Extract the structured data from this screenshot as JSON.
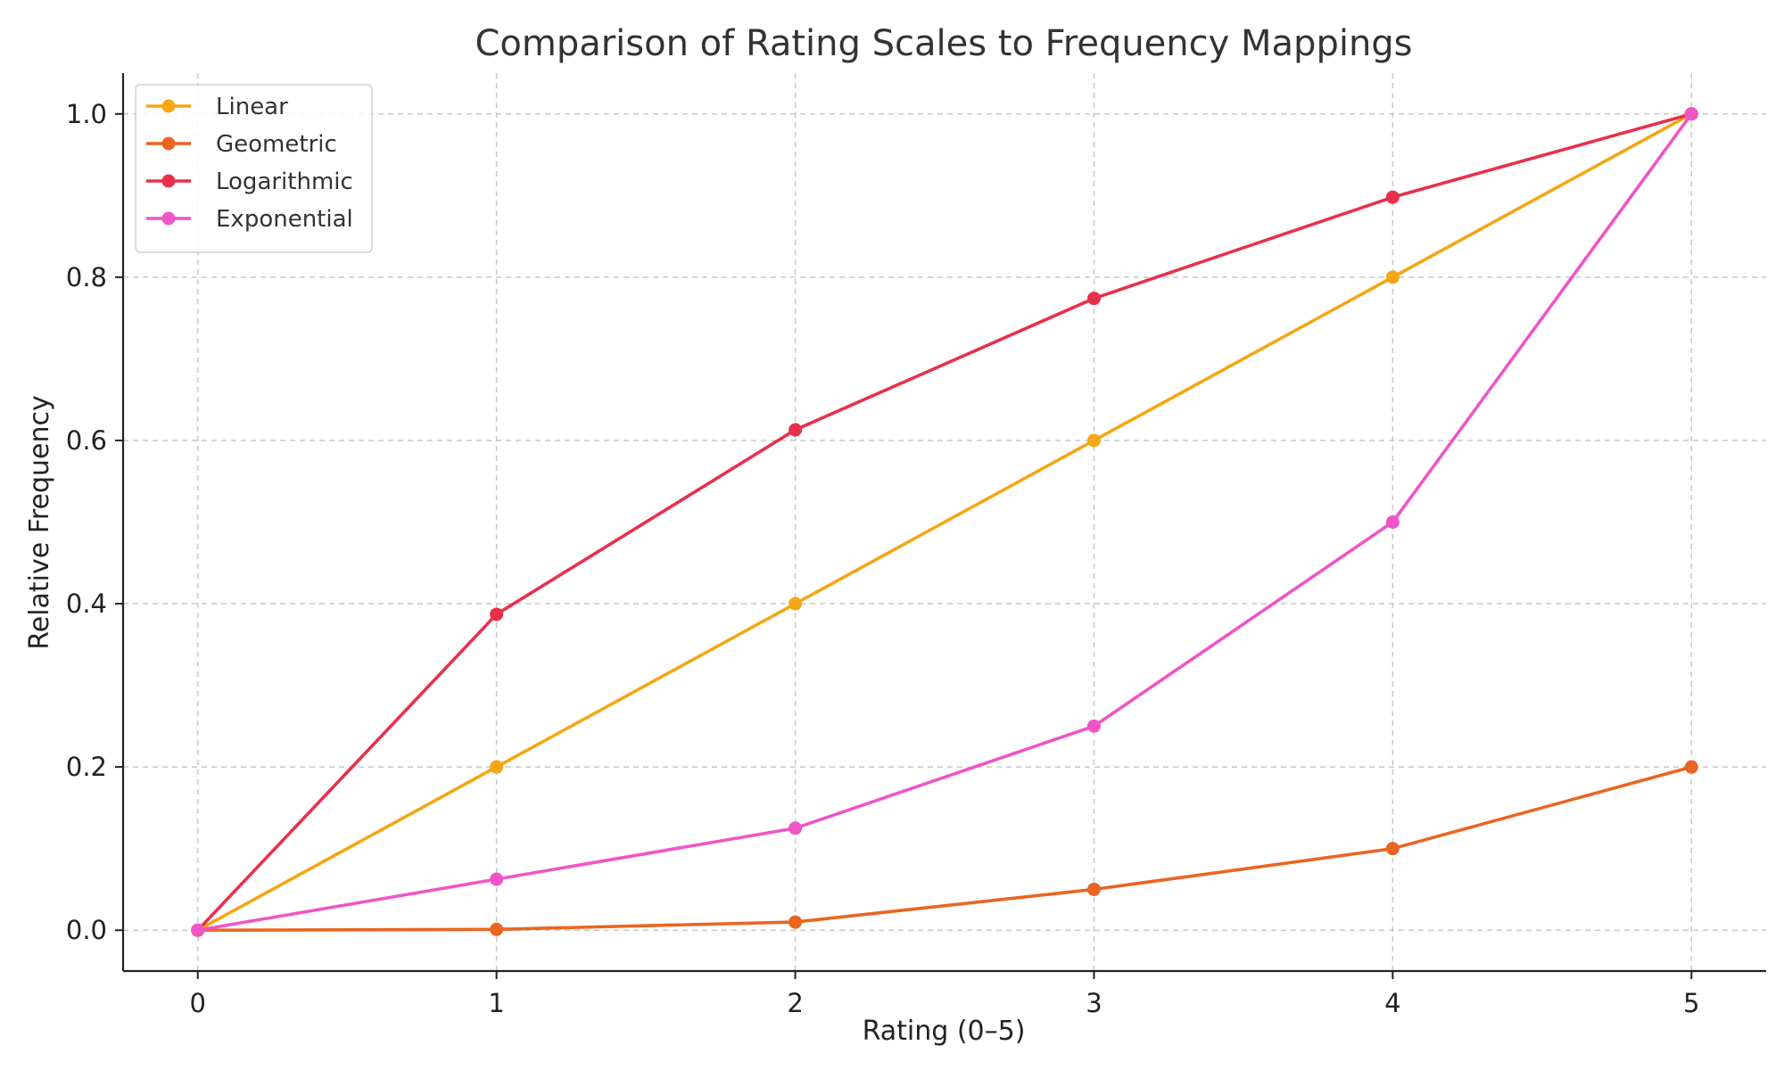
{
  "chart_data": {
    "type": "line",
    "title": "Comparison of Rating Scales to Frequency Mappings",
    "xlabel": "Rating (0–5)",
    "ylabel": "Relative Frequency",
    "x": [
      0,
      1,
      2,
      3,
      4,
      5
    ],
    "x_ticks": [
      "0",
      "1",
      "2",
      "3",
      "4",
      "5"
    ],
    "y_ticks": [
      "0.0",
      "0.2",
      "0.4",
      "0.6",
      "0.8",
      "1.0"
    ],
    "xlim": [
      -0.25,
      5.25
    ],
    "ylim": [
      -0.05,
      1.05
    ],
    "grid": true,
    "legend_position": "top-left",
    "series": [
      {
        "name": "Linear",
        "color": "#f5a614",
        "values": [
          0.0,
          0.2,
          0.4,
          0.6,
          0.8,
          1.0
        ]
      },
      {
        "name": "Geometric",
        "color": "#ea6521",
        "values": [
          0.0,
          0.001,
          0.01,
          0.05,
          0.1,
          0.2
        ]
      },
      {
        "name": "Logarithmic",
        "color": "#e8304d",
        "values": [
          0.0,
          0.387,
          0.613,
          0.774,
          0.898,
          1.0
        ]
      },
      {
        "name": "Exponential",
        "color": "#ef55c6",
        "values": [
          0.0,
          0.0625,
          0.125,
          0.25,
          0.5,
          1.0
        ]
      }
    ]
  }
}
